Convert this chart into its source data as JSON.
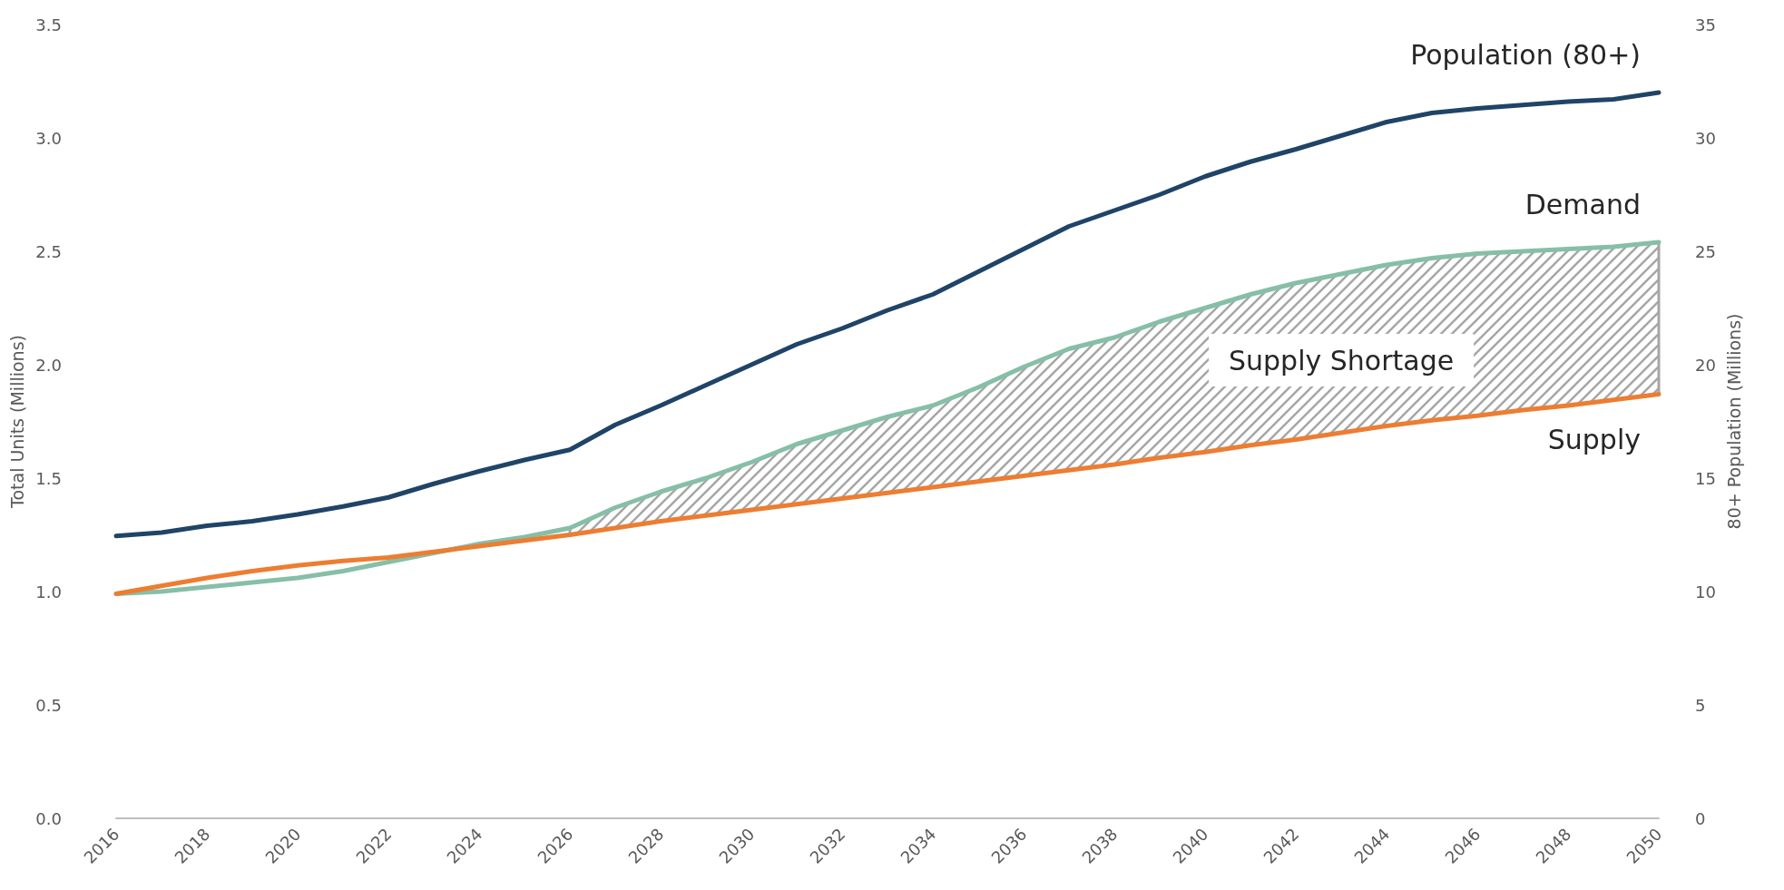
{
  "chart_data": {
    "type": "line",
    "ylabel": "Total Units (Millions)",
    "y2label": "80+ Population (Millions)",
    "x": [
      2016,
      2017,
      2018,
      2019,
      2020,
      2021,
      2022,
      2023,
      2024,
      2025,
      2026,
      2027,
      2028,
      2029,
      2030,
      2031,
      2032,
      2033,
      2034,
      2035,
      2036,
      2037,
      2038,
      2039,
      2040,
      2041,
      2042,
      2043,
      2044,
      2045,
      2046,
      2047,
      2048,
      2049,
      2050
    ],
    "xlim": [
      2016,
      2050
    ],
    "xticks": [
      2016,
      2018,
      2020,
      2022,
      2024,
      2026,
      2028,
      2030,
      2032,
      2034,
      2036,
      2038,
      2040,
      2042,
      2044,
      2046,
      2048,
      2050
    ],
    "ylim": [
      0,
      3.5
    ],
    "yticks": [
      {
        "value": 0,
        "label": "0.0"
      },
      0.5,
      {
        "value": 1,
        "label": "1.0"
      },
      1.5,
      {
        "value": 2,
        "label": "2.0"
      },
      2.5,
      {
        "value": 3,
        "label": "3.0"
      },
      3.5
    ],
    "y2lim": [
      0,
      35
    ],
    "y2ticks": [
      0,
      5,
      10,
      15,
      20,
      25,
      30,
      35
    ],
    "series": [
      {
        "name": "Population (80+)",
        "color": "#1f4467",
        "axis": "y2",
        "values": [
          12.45,
          12.6,
          12.9,
          13.1,
          13.4,
          13.75,
          14.15,
          14.75,
          15.3,
          15.8,
          16.25,
          17.35,
          18.2,
          19.1,
          20.0,
          20.9,
          21.6,
          22.4,
          23.1,
          24.1,
          25.1,
          26.1,
          26.8,
          27.5,
          28.3,
          28.95,
          29.5,
          30.1,
          30.7,
          31.1,
          31.3,
          31.45,
          31.6,
          31.7,
          32.0
        ]
      },
      {
        "name": "Demand",
        "color": "#86bfa7",
        "values": [
          0.99,
          1.0,
          1.02,
          1.04,
          1.06,
          1.09,
          1.13,
          1.17,
          1.21,
          1.24,
          1.28,
          1.37,
          1.44,
          1.5,
          1.57,
          1.65,
          1.71,
          1.77,
          1.82,
          1.9,
          1.99,
          2.07,
          2.12,
          2.19,
          2.25,
          2.31,
          2.36,
          2.4,
          2.44,
          2.47,
          2.49,
          2.5,
          2.51,
          2.52,
          2.54
        ],
        "lower": [
          null,
          null,
          null,
          null,
          null,
          null,
          null,
          null,
          null,
          null,
          1.25,
          1.28,
          1.31,
          1.335,
          1.36,
          1.385,
          1.41,
          1.435,
          1.46,
          1.485,
          1.51,
          1.535,
          1.56,
          1.59,
          1.615,
          1.645,
          1.67,
          1.7,
          1.73,
          1.755,
          1.775,
          1.8,
          1.82,
          1.845,
          1.87
        ],
        "upper": [
          null,
          null,
          null,
          null,
          null,
          null,
          null,
          null,
          null,
          null,
          1.28,
          1.37,
          1.44,
          1.5,
          1.57,
          1.65,
          1.71,
          1.77,
          1.82,
          1.9,
          1.99,
          2.07,
          2.12,
          2.19,
          2.25,
          2.31,
          2.36,
          2.4,
          2.44,
          2.47,
          2.49,
          2.5,
          2.51,
          2.52,
          2.54
        ]
      },
      {
        "name": "Supply",
        "color": "#ed7d31",
        "values": [
          0.99,
          1.025,
          1.06,
          1.09,
          1.115,
          1.135,
          1.15,
          1.175,
          1.2,
          1.225,
          1.25,
          1.28,
          1.31,
          1.335,
          1.36,
          1.385,
          1.41,
          1.435,
          1.46,
          1.485,
          1.51,
          1.535,
          1.56,
          1.59,
          1.615,
          1.645,
          1.67,
          1.7,
          1.73,
          1.755,
          1.775,
          1.8,
          1.82,
          1.845,
          1.87
        ]
      }
    ],
    "annotations": [
      "Supply Shortage"
    ],
    "grid": false,
    "legend": false,
    "marker": "none",
    "line_style": "solid"
  }
}
